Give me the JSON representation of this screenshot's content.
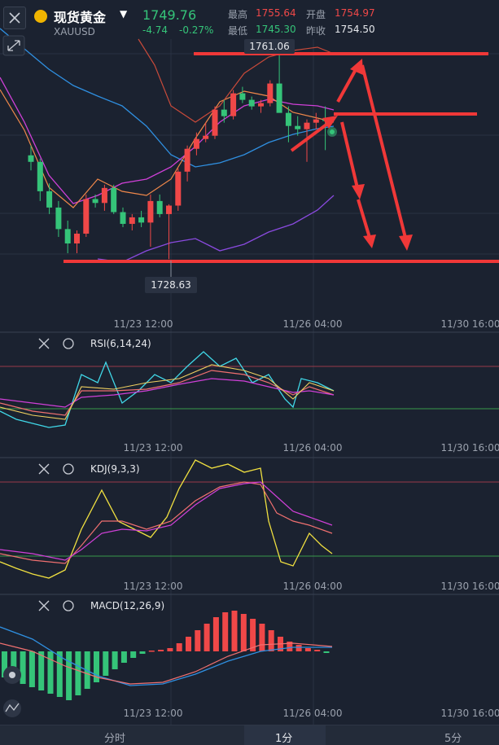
{
  "header": {
    "title": "现货黄金",
    "symbol": "XAUUSD",
    "price": "1749.76",
    "change": "-4.74",
    "change_pct": "-0.27%",
    "quotes": {
      "high_label": "最高",
      "high": "1755.64",
      "open_label": "开盘",
      "open": "1754.97",
      "low_label": "最低",
      "low": "1745.30",
      "prev_label": "昨收",
      "prev": "1754.50"
    }
  },
  "main_chart": {
    "max_label": "1761.06",
    "min_label": "1728.63",
    "time_labels": [
      "11/23 12:00",
      "11/26 04:00",
      "11/30 16:00"
    ]
  },
  "panels": {
    "rsi": {
      "label": "RSI(6,14,24)",
      "time_labels": [
        "11/23 12:00",
        "11/26 04:00",
        "11/30 16:00"
      ]
    },
    "kdj": {
      "label": "KDJ(9,3,3)",
      "time_labels": [
        "11/23 12:00",
        "11/26 04:00",
        "11/30 16:00"
      ]
    },
    "macd": {
      "label": "MACD(12,26,9)",
      "time_labels": [
        "11/23 12:00",
        "11/26 04:00",
        "11/30 16:00"
      ]
    }
  },
  "bottom_tabs": [
    "分时",
    "1分",
    "5分"
  ],
  "colors": {
    "up": "#f04848",
    "down": "#35c479",
    "bg": "#1b2230"
  },
  "chart_data": {
    "type": "candlestick",
    "series": [
      {
        "open": 1744.5,
        "high": 1746.0,
        "low": 1742.2,
        "close": 1743.5
      },
      {
        "open": 1743.5,
        "high": 1744.0,
        "low": 1737.5,
        "close": 1739.0
      },
      {
        "open": 1739.0,
        "high": 1740.2,
        "low": 1735.5,
        "close": 1736.5
      },
      {
        "open": 1736.5,
        "high": 1737.5,
        "low": 1732.0,
        "close": 1733.2
      },
      {
        "open": 1733.2,
        "high": 1734.5,
        "low": 1729.5,
        "close": 1731.0
      },
      {
        "open": 1731.0,
        "high": 1733.0,
        "low": 1729.5,
        "close": 1732.5
      },
      {
        "open": 1732.5,
        "high": 1738.5,
        "low": 1732.0,
        "close": 1737.8
      },
      {
        "open": 1737.8,
        "high": 1738.5,
        "low": 1736.5,
        "close": 1737.2
      },
      {
        "open": 1737.2,
        "high": 1740.0,
        "low": 1736.0,
        "close": 1739.5
      },
      {
        "open": 1739.5,
        "high": 1740.0,
        "low": 1735.5,
        "close": 1735.8
      },
      {
        "open": 1735.8,
        "high": 1736.5,
        "low": 1733.5,
        "close": 1734.0
      },
      {
        "open": 1734.0,
        "high": 1735.5,
        "low": 1733.0,
        "close": 1735.0
      },
      {
        "open": 1735.0,
        "high": 1736.0,
        "low": 1733.5,
        "close": 1734.2
      },
      {
        "open": 1734.2,
        "high": 1738.5,
        "low": 1730.5,
        "close": 1737.5
      },
      {
        "open": 1737.5,
        "high": 1738.5,
        "low": 1735.0,
        "close": 1735.5
      },
      {
        "open": 1735.5,
        "high": 1737.0,
        "low": 1728.6,
        "close": 1736.8
      },
      {
        "open": 1736.8,
        "high": 1742.5,
        "low": 1736.0,
        "close": 1742.0
      },
      {
        "open": 1742.0,
        "high": 1746.0,
        "low": 1740.5,
        "close": 1745.5
      },
      {
        "open": 1745.5,
        "high": 1748.0,
        "low": 1744.5,
        "close": 1747.0
      },
      {
        "open": 1747.0,
        "high": 1749.5,
        "low": 1746.5,
        "close": 1747.5
      },
      {
        "open": 1747.5,
        "high": 1752.0,
        "low": 1747.0,
        "close": 1751.5
      },
      {
        "open": 1751.5,
        "high": 1753.0,
        "low": 1749.5,
        "close": 1750.5
      },
      {
        "open": 1750.5,
        "high": 1754.5,
        "low": 1750.0,
        "close": 1754.0
      },
      {
        "open": 1754.0,
        "high": 1755.0,
        "low": 1752.5,
        "close": 1753.0
      },
      {
        "open": 1753.0,
        "high": 1753.5,
        "low": 1751.5,
        "close": 1752.0
      },
      {
        "open": 1752.0,
        "high": 1753.0,
        "low": 1751.0,
        "close": 1752.5
      },
      {
        "open": 1752.5,
        "high": 1756.0,
        "low": 1752.0,
        "close": 1755.5
      },
      {
        "open": 1755.5,
        "high": 1761.06,
        "low": 1754.5,
        "close": 1751.0
      },
      {
        "open": 1751.0,
        "high": 1752.0,
        "low": 1746.5,
        "close": 1749.0
      },
      {
        "open": 1749.0,
        "high": 1750.5,
        "low": 1747.5,
        "close": 1748.5
      },
      {
        "open": 1748.5,
        "high": 1750.0,
        "low": 1743.5,
        "close": 1749.5
      },
      {
        "open": 1749.5,
        "high": 1751.0,
        "low": 1748.5,
        "close": 1750.0
      },
      {
        "open": 1750.0,
        "high": 1752.0,
        "low": 1745.3,
        "close": 1749.76
      }
    ]
  }
}
